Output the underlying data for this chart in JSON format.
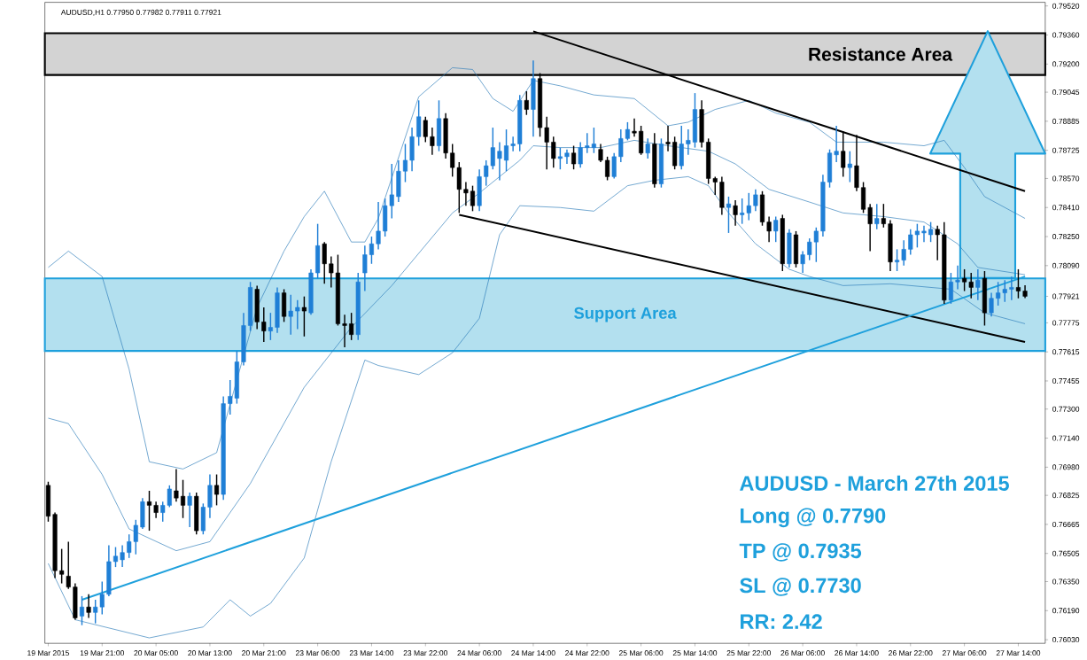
{
  "chart_data": {
    "type": "candlestick",
    "title": "AUDUSD,H1 0.77950 0.77982 0.77911 0.77921",
    "categories": [
      "19 Mar 2015",
      null,
      null,
      null,
      null,
      null,
      null,
      null,
      "19 Mar 21:00",
      null,
      null,
      null,
      null,
      null,
      null,
      null,
      "20 Mar 05:00",
      null,
      null,
      null,
      null,
      null,
      null,
      null,
      "20 Mar 13:00",
      null,
      null,
      null,
      null,
      null,
      null,
      null,
      "20 Mar 21:00",
      null,
      null,
      null,
      null,
      null,
      null,
      null,
      "23 Mar 06:00",
      null,
      null,
      null,
      null,
      null,
      null,
      null,
      "23 Mar 14:00",
      null,
      null,
      null,
      null,
      null,
      null,
      null,
      "23 Mar 22:00",
      null,
      null,
      null,
      null,
      null,
      null,
      null,
      "24 Mar 06:00",
      null,
      null,
      null,
      null,
      null,
      null,
      null,
      "24 Mar 14:00",
      null,
      null,
      null,
      null,
      null,
      null,
      null,
      "24 Mar 22:00",
      null,
      null,
      null,
      null,
      null,
      null,
      null,
      "25 Mar 06:00",
      null,
      null,
      null,
      null,
      null,
      null,
      null,
      "25 Mar 14:00",
      null,
      null,
      null,
      null,
      null,
      null,
      null,
      "25 Mar 22:00",
      null,
      null,
      null,
      null,
      null,
      null,
      null,
      "26 Mar 06:00",
      null,
      null,
      null,
      null,
      null,
      null,
      null,
      "26 Mar 14:00",
      null,
      null,
      null,
      null,
      null,
      null,
      null,
      "26 Mar 22:00",
      null,
      null,
      null,
      null,
      null,
      null,
      null,
      "27 Mar 06:00",
      null,
      null,
      null,
      null,
      null,
      null,
      null,
      "27 Mar 14:00",
      null
    ],
    "ohlc": [
      [
        0.7688,
        0.769,
        0.7668,
        0.7671
      ],
      [
        0.7672,
        0.7673,
        0.7637,
        0.7641
      ],
      [
        0.7641,
        0.7653,
        0.7634,
        0.7639
      ],
      [
        0.7638,
        0.7657,
        0.7631,
        0.7632
      ],
      [
        0.7632,
        0.7634,
        0.7614,
        0.7615
      ],
      [
        0.7616,
        0.7627,
        0.7611,
        0.7621
      ],
      [
        0.7621,
        0.7628,
        0.7615,
        0.7618
      ],
      [
        0.7618,
        0.7625,
        0.7612,
        0.7621
      ],
      [
        0.7621,
        0.7635,
        0.7617,
        0.7628
      ],
      [
        0.7628,
        0.7655,
        0.7627,
        0.7646
      ],
      [
        0.7646,
        0.7654,
        0.7643,
        0.7649
      ],
      [
        0.7647,
        0.7655,
        0.7643,
        0.7651
      ],
      [
        0.7651,
        0.7661,
        0.7648,
        0.7657
      ],
      [
        0.7657,
        0.7669,
        0.765,
        0.7666
      ],
      [
        0.7665,
        0.7681,
        0.7664,
        0.7679
      ],
      [
        0.7679,
        0.7685,
        0.7663,
        0.7677
      ],
      [
        0.7677,
        0.7679,
        0.767,
        0.7673
      ],
      [
        0.7673,
        0.7679,
        0.7668,
        0.7677
      ],
      [
        0.7677,
        0.7688,
        0.7676,
        0.7686
      ],
      [
        0.7685,
        0.7697,
        0.7679,
        0.7681
      ],
      [
        0.7682,
        0.7691,
        0.767,
        0.7677
      ],
      [
        0.7677,
        0.7684,
        0.7665,
        0.7682
      ],
      [
        0.7682,
        0.7684,
        0.7661,
        0.7663
      ],
      [
        0.7663,
        0.7678,
        0.7661,
        0.7676
      ],
      [
        0.7676,
        0.7694,
        0.767,
        0.7688
      ],
      [
        0.7688,
        0.7694,
        0.7677,
        0.7683
      ],
      [
        0.7683,
        0.7737,
        0.768,
        0.7733
      ],
      [
        0.7733,
        0.7746,
        0.7727,
        0.7737
      ],
      [
        0.7736,
        0.7762,
        0.7733,
        0.7756
      ],
      [
        0.7756,
        0.7783,
        0.7754,
        0.7776
      ],
      [
        0.7776,
        0.78,
        0.7773,
        0.7797
      ],
      [
        0.7796,
        0.7798,
        0.7774,
        0.7778
      ],
      [
        0.7778,
        0.7786,
        0.7767,
        0.7773
      ],
      [
        0.7773,
        0.7783,
        0.7768,
        0.7775
      ],
      [
        0.7775,
        0.7797,
        0.7772,
        0.7794
      ],
      [
        0.7794,
        0.7796,
        0.7778,
        0.7781
      ],
      [
        0.7781,
        0.7793,
        0.7771,
        0.7784
      ],
      [
        0.7784,
        0.779,
        0.7774,
        0.7786
      ],
      [
        0.7786,
        0.7792,
        0.777,
        0.7784
      ],
      [
        0.7783,
        0.7807,
        0.7782,
        0.7805
      ],
      [
        0.7805,
        0.7832,
        0.7802,
        0.782
      ],
      [
        0.7821,
        0.7822,
        0.7799,
        0.781
      ],
      [
        0.781,
        0.7814,
        0.7797,
        0.7805
      ],
      [
        0.7805,
        0.7815,
        0.7776,
        0.7777
      ],
      [
        0.7777,
        0.7782,
        0.7764,
        0.7776
      ],
      [
        0.7777,
        0.7783,
        0.7768,
        0.7771
      ],
      [
        0.7771,
        0.7805,
        0.7768,
        0.78
      ],
      [
        0.7805,
        0.782,
        0.7795,
        0.7815
      ],
      [
        0.7815,
        0.7825,
        0.781,
        0.7821
      ],
      [
        0.7821,
        0.7844,
        0.7818,
        0.7828
      ],
      [
        0.7828,
        0.7846,
        0.7825,
        0.7842
      ],
      [
        0.7842,
        0.7865,
        0.7835,
        0.7848
      ],
      [
        0.7847,
        0.7867,
        0.7844,
        0.7861
      ],
      [
        0.7861,
        0.7876,
        0.7855,
        0.7867
      ],
      [
        0.7867,
        0.7885,
        0.7861,
        0.788
      ],
      [
        0.788,
        0.79,
        0.7875,
        0.7891
      ],
      [
        0.7889,
        0.7891,
        0.7877,
        0.788
      ],
      [
        0.788,
        0.7885,
        0.787,
        0.7875
      ],
      [
        0.7875,
        0.79,
        0.7872,
        0.789
      ],
      [
        0.789,
        0.7893,
        0.7868,
        0.7871
      ],
      [
        0.7871,
        0.7876,
        0.7858,
        0.7863
      ],
      [
        0.7863,
        0.7866,
        0.7838,
        0.7851
      ],
      [
        0.7851,
        0.7855,
        0.7842,
        0.7849
      ],
      [
        0.785,
        0.7853,
        0.7839,
        0.7842
      ],
      [
        0.7842,
        0.7862,
        0.7839,
        0.7858
      ],
      [
        0.7858,
        0.7867,
        0.7853,
        0.7864
      ],
      [
        0.7864,
        0.7885,
        0.7862,
        0.7874
      ],
      [
        0.7868,
        0.7877,
        0.7856,
        0.7872
      ],
      [
        0.7867,
        0.7884,
        0.7861,
        0.7875
      ],
      [
        0.7875,
        0.788,
        0.7872,
        0.7876
      ],
      [
        0.7876,
        0.7903,
        0.7872,
        0.79
      ],
      [
        0.79,
        0.7905,
        0.7892,
        0.7895
      ],
      [
        0.7895,
        0.7922,
        0.788,
        0.7912
      ],
      [
        0.7912,
        0.7915,
        0.788,
        0.7885
      ],
      [
        0.7885,
        0.7891,
        0.7862,
        0.7877
      ],
      [
        0.7877,
        0.788,
        0.7863,
        0.7868
      ],
      [
        0.7868,
        0.7874,
        0.7862,
        0.7869
      ],
      [
        0.7869,
        0.7873,
        0.7865,
        0.7871
      ],
      [
        0.7871,
        0.7875,
        0.7862,
        0.7865
      ],
      [
        0.7865,
        0.7877,
        0.7863,
        0.7874
      ],
      [
        0.7874,
        0.7882,
        0.7871,
        0.7875
      ],
      [
        0.7874,
        0.7885,
        0.7871,
        0.7876
      ],
      [
        0.7873,
        0.7876,
        0.7866,
        0.7867
      ],
      [
        0.7867,
        0.7869,
        0.7856,
        0.7858
      ],
      [
        0.7858,
        0.7871,
        0.7857,
        0.7869
      ],
      [
        0.7869,
        0.7884,
        0.7866,
        0.7879
      ],
      [
        0.7879,
        0.7888,
        0.7878,
        0.7884
      ],
      [
        0.7883,
        0.789,
        0.788,
        0.7882
      ],
      [
        0.7883,
        0.7886,
        0.787,
        0.7871
      ],
      [
        0.7871,
        0.7879,
        0.7868,
        0.7876
      ],
      [
        0.7876,
        0.7882,
        0.7852,
        0.7854
      ],
      [
        0.7854,
        0.7879,
        0.7852,
        0.7876
      ],
      [
        0.7877,
        0.7886,
        0.7872,
        0.7876
      ],
      [
        0.7877,
        0.788,
        0.7862,
        0.7864
      ],
      [
        0.7864,
        0.7886,
        0.7862,
        0.7876
      ],
      [
        0.7876,
        0.7884,
        0.787,
        0.7878
      ],
      [
        0.7877,
        0.7904,
        0.7874,
        0.7895
      ],
      [
        0.7895,
        0.79,
        0.7874,
        0.7877
      ],
      [
        0.7877,
        0.7879,
        0.7854,
        0.7857
      ],
      [
        0.7857,
        0.7858,
        0.7848,
        0.7855
      ],
      [
        0.7855,
        0.7858,
        0.7837,
        0.7841
      ],
      [
        0.7841,
        0.7847,
        0.7827,
        0.7843
      ],
      [
        0.7842,
        0.7845,
        0.7831,
        0.7837
      ],
      [
        0.7837,
        0.7846,
        0.7832,
        0.7838
      ],
      [
        0.7838,
        0.7849,
        0.7834,
        0.7842
      ],
      [
        0.7842,
        0.7851,
        0.7839,
        0.7848
      ],
      [
        0.7848,
        0.785,
        0.7831,
        0.7833
      ],
      [
        0.7833,
        0.7836,
        0.7822,
        0.7828
      ],
      [
        0.7828,
        0.7836,
        0.7822,
        0.7834
      ],
      [
        0.7835,
        0.7837,
        0.7806,
        0.781
      ],
      [
        0.781,
        0.7829,
        0.7808,
        0.7827
      ],
      [
        0.7826,
        0.7828,
        0.7808,
        0.781
      ],
      [
        0.781,
        0.7817,
        0.7805,
        0.7815
      ],
      [
        0.7815,
        0.7824,
        0.7812,
        0.7822
      ],
      [
        0.7822,
        0.783,
        0.7811,
        0.7828
      ],
      [
        0.7828,
        0.7859,
        0.7825,
        0.7855
      ],
      [
        0.7855,
        0.7873,
        0.7852,
        0.7871
      ],
      [
        0.787,
        0.7886,
        0.7866,
        0.7872
      ],
      [
        0.7872,
        0.7883,
        0.7858,
        0.7863
      ],
      [
        0.7863,
        0.7872,
        0.7855,
        0.7865
      ],
      [
        0.7864,
        0.7881,
        0.785,
        0.7852
      ],
      [
        0.7852,
        0.7855,
        0.7838,
        0.784
      ],
      [
        0.7841,
        0.7843,
        0.7817,
        0.7832
      ],
      [
        0.7832,
        0.7843,
        0.7829,
        0.7835
      ],
      [
        0.7835,
        0.7843,
        0.783,
        0.7832
      ],
      [
        0.7832,
        0.7834,
        0.7806,
        0.7811
      ],
      [
        0.7811,
        0.7818,
        0.7806,
        0.7812
      ],
      [
        0.7812,
        0.7823,
        0.7809,
        0.7818
      ],
      [
        0.7818,
        0.7829,
        0.7815,
        0.7826
      ],
      [
        0.7826,
        0.7832,
        0.7819,
        0.7828
      ],
      [
        0.7827,
        0.7831,
        0.7822,
        0.7828
      ],
      [
        0.7826,
        0.7833,
        0.7822,
        0.7829
      ],
      [
        0.7829,
        0.7831,
        0.7812,
        0.7826
      ],
      [
        0.7826,
        0.7833,
        0.7788,
        0.779
      ],
      [
        0.779,
        0.7805,
        0.7788,
        0.78
      ],
      [
        0.78,
        0.7809,
        0.7796,
        0.7801
      ],
      [
        0.7802,
        0.7807,
        0.7795,
        0.78
      ],
      [
        0.78,
        0.7805,
        0.7791,
        0.7797
      ],
      [
        0.7797,
        0.7807,
        0.779,
        0.7801
      ],
      [
        0.7802,
        0.7806,
        0.7776,
        0.7783
      ],
      [
        0.7783,
        0.7794,
        0.7781,
        0.7791
      ],
      [
        0.7791,
        0.78,
        0.7787,
        0.7794
      ],
      [
        0.7794,
        0.7801,
        0.7789,
        0.7796
      ],
      [
        0.7796,
        0.7803,
        0.779,
        0.7797
      ],
      [
        0.7797,
        0.7807,
        0.7791,
        0.7795
      ],
      [
        0.7795,
        0.77982,
        0.77911,
        0.77921
      ]
    ],
    "series": [
      {
        "type": "line",
        "color": "#2b7bb9",
        "values": [
          0.7808,
          null,
          null,
          0.7817,
          null,
          null,
          null,
          null,
          0.7803,
          null,
          null,
          null,
          0.7752,
          null,
          null,
          0.7701,
          null,
          null,
          null,
          null,
          0.7697,
          null,
          null,
          null,
          null,
          0.7706,
          null,
          null,
          null,
          null,
          null,
          0.7786,
          null,
          null,
          null,
          0.7817,
          null,
          null,
          0.7836,
          null,
          null,
          0.785,
          null,
          null,
          null,
          0.7822,
          null,
          0.7822,
          null,
          0.7835,
          null,
          null,
          null,
          null,
          null,
          0.7902,
          null,
          null,
          null,
          null,
          0.7918,
          null,
          null,
          0.7917,
          null,
          null,
          0.7901,
          null,
          null,
          0.7894,
          null,
          null,
          0.7911,
          null,
          null,
          null,
          0.7908,
          null,
          null,
          null,
          null,
          0.7903,
          null,
          null,
          null,
          null,
          null,
          0.7901,
          null,
          null,
          null,
          null,
          0.7886,
          null,
          null,
          0.7888,
          null,
          null,
          null,
          0.7895,
          null,
          null,
          null,
          null,
          0.79,
          null,
          null,
          null,
          0.7893,
          null,
          null,
          null,
          null,
          0.7888,
          null,
          null,
          null,
          0.7877,
          null,
          null,
          null,
          null,
          null,
          null,
          0.7877,
          null,
          null,
          null,
          null,
          null,
          0.7875,
          null,
          null,
          0.7878,
          null,
          null,
          0.7863,
          null,
          null,
          0.7847,
          null,
          null,
          null,
          null,
          null,
          0.7835
        ]
      },
      {
        "type": "line",
        "color": "#2b7bb9",
        "values": [
          0.7725,
          null,
          null,
          0.7722,
          null,
          null,
          null,
          null,
          0.7694,
          null,
          null,
          null,
          0.7664,
          null,
          null,
          null,
          null,
          null,
          null,
          0.7652,
          null,
          null,
          null,
          null,
          0.7657,
          null,
          null,
          null,
          null,
          null,
          0.7689,
          null,
          null,
          null,
          null,
          null,
          null,
          null,
          0.7742,
          null,
          null,
          null,
          null,
          null,
          null,
          0.7775,
          null,
          null,
          null,
          null,
          null,
          0.7798,
          null,
          null,
          null,
          null,
          null,
          null,
          null,
          null,
          0.7838,
          null,
          null,
          null,
          0.7849,
          null,
          null,
          null,
          null,
          null,
          0.7867,
          null,
          0.7875,
          null,
          null,
          null,
          0.7874,
          null,
          null,
          null,
          null,
          null,
          0.7874,
          null,
          null,
          null,
          null,
          0.7878,
          null,
          null,
          null,
          null,
          0.7875,
          null,
          null,
          null,
          null,
          null,
          0.7872,
          null,
          null,
          null,
          0.7865,
          null,
          null,
          null,
          null,
          0.7851,
          null,
          null,
          null,
          null,
          null,
          0.7844,
          null,
          null,
          null,
          null,
          0.7838,
          null,
          null,
          null,
          null,
          null,
          0.7836,
          null,
          null,
          null,
          null,
          null,
          0.7833,
          null,
          null,
          null,
          null,
          0.7821,
          null,
          null,
          0.7808,
          null,
          null,
          null,
          null,
          null,
          null,
          0.7804
        ]
      },
      {
        "type": "line",
        "color": "#2b7bb9",
        "values": [
          0.7645,
          null,
          null,
          null,
          0.7614,
          null,
          null,
          null,
          null,
          null,
          null,
          null,
          null,
          null,
          null,
          0.7604,
          null,
          null,
          null,
          0.7607,
          null,
          null,
          null,
          0.761,
          null,
          null,
          null,
          0.7625,
          null,
          null,
          0.7616,
          null,
          null,
          0.7623,
          null,
          null,
          null,
          null,
          0.7648,
          null,
          null,
          null,
          0.7701,
          null,
          null,
          null,
          null,
          0.7757,
          null,
          0.7754,
          null,
          null,
          null,
          null,
          null,
          0.7749,
          null,
          null,
          null,
          null,
          0.7761,
          null,
          null,
          null,
          0.778,
          null,
          null,
          0.7826,
          null,
          null,
          0.7842,
          null,
          null,
          null,
          null,
          null,
          0.7841,
          null,
          null,
          null,
          null,
          0.7839,
          null,
          null,
          null,
          null,
          0.7853,
          null,
          null,
          null,
          0.7856,
          null,
          null,
          null,
          null,
          0.7858,
          null,
          null,
          0.7853,
          null,
          null,
          0.7838,
          null,
          null,
          null,
          0.7821,
          null,
          null,
          null,
          null,
          0.7807,
          null,
          null,
          0.7803,
          null,
          null,
          null,
          null,
          0.7798,
          null,
          null,
          null,
          null,
          null,
          null,
          0.7799,
          null,
          null,
          null,
          null,
          null,
          null,
          null,
          null,
          0.7796,
          null,
          null,
          null,
          null,
          0.7783,
          null,
          null,
          null,
          null,
          null,
          0.7777
        ]
      },
      {
        "type": "line",
        "color": "#000000",
        "values": [
          null,
          null,
          null,
          null,
          null,
          null,
          null,
          null,
          null,
          null,
          null,
          null,
          null,
          null,
          null,
          null,
          null,
          null,
          null,
          null,
          null,
          null,
          null,
          null,
          null,
          null,
          null,
          null,
          null,
          null,
          null,
          null,
          null,
          null,
          null,
          null,
          null,
          null,
          null,
          null,
          null,
          null,
          null,
          null,
          null,
          null,
          null,
          null,
          null,
          null,
          null,
          null,
          null,
          null,
          null,
          null,
          null,
          null,
          null,
          null,
          null,
          null,
          null,
          null,
          null,
          null,
          null,
          null,
          null,
          null,
          null,
          null,
          0.7938,
          null,
          null,
          null,
          null,
          null,
          null,
          null,
          null,
          null,
          null,
          null,
          null,
          null,
          null,
          null,
          null,
          null,
          null,
          null,
          null,
          null,
          null,
          null,
          null,
          null,
          null,
          null,
          null,
          null,
          null,
          null,
          null,
          null,
          null,
          null,
          null,
          null,
          null,
          null,
          null,
          null,
          null,
          null,
          null,
          null,
          null,
          null,
          null,
          null,
          null,
          null,
          null,
          null,
          null,
          null,
          null,
          null,
          null,
          null,
          null,
          null,
          null,
          null,
          null,
          null,
          null,
          null,
          null,
          null,
          null,
          null,
          null,
          0.785
        ]
      },
      {
        "type": "line",
        "color": "#000000",
        "values": [
          null,
          null,
          null,
          null,
          null,
          null,
          null,
          null,
          null,
          null,
          null,
          null,
          null,
          null,
          null,
          null,
          null,
          null,
          null,
          null,
          null,
          null,
          null,
          null,
          null,
          null,
          null,
          null,
          null,
          null,
          null,
          null,
          null,
          null,
          null,
          null,
          null,
          null,
          null,
          null,
          null,
          null,
          null,
          null,
          null,
          null,
          null,
          null,
          null,
          null,
          null,
          null,
          null,
          null,
          null,
          null,
          null,
          null,
          null,
          null,
          null,
          0.7837,
          null,
          null,
          null,
          null,
          null,
          null,
          null,
          null,
          null,
          null,
          null,
          null,
          null,
          null,
          null,
          null,
          null,
          null,
          null,
          null,
          null,
          null,
          null,
          null,
          null,
          null,
          null,
          null,
          null,
          null,
          null,
          null,
          null,
          null,
          null,
          null,
          null,
          null,
          null,
          null,
          null,
          null,
          null,
          null,
          null,
          null,
          null,
          null,
          null,
          null,
          null,
          null,
          null,
          null,
          null,
          null,
          null,
          null,
          null,
          null,
          null,
          null,
          null,
          null,
          null,
          null,
          null,
          null,
          null,
          null,
          null,
          null,
          null,
          null,
          null,
          null,
          null,
          null,
          null,
          null,
          null,
          null,
          null,
          0.7767
        ]
      },
      {
        "type": "line",
        "color": "#1ea0dc",
        "values": [
          null,
          null,
          null,
          null,
          null,
          0.7625,
          null,
          null,
          null,
          null,
          null,
          null,
          null,
          null,
          null,
          null,
          null,
          null,
          null,
          null,
          null,
          null,
          null,
          null,
          null,
          null,
          null,
          null,
          null,
          null,
          null,
          null,
          null,
          null,
          null,
          null,
          null,
          null,
          null,
          null,
          null,
          null,
          null,
          null,
          null,
          null,
          null,
          null,
          null,
          null,
          null,
          null,
          null,
          null,
          null,
          null,
          null,
          null,
          null,
          null,
          null,
          null,
          null,
          null,
          null,
          null,
          null,
          null,
          null,
          null,
          null,
          null,
          null,
          null,
          null,
          null,
          null,
          null,
          null,
          null,
          null,
          null,
          null,
          null,
          null,
          null,
          null,
          null,
          null,
          null,
          null,
          null,
          null,
          null,
          null,
          null,
          null,
          null,
          null,
          null,
          null,
          null,
          null,
          null,
          null,
          null,
          null,
          null,
          null,
          null,
          null,
          null,
          null,
          null,
          null,
          null,
          null,
          null,
          null,
          null,
          null,
          null,
          null,
          null,
          null,
          null,
          null,
          null,
          null,
          null,
          null,
          null,
          null,
          null,
          null,
          null,
          null,
          null,
          null,
          null,
          null,
          null,
          null,
          null,
          null,
          0.7803
        ]
      }
    ],
    "bands": [
      {
        "axis": "y",
        "from": 0.7762,
        "to": 0.7802,
        "label": "Support Area",
        "color": "#b3e0ef"
      },
      {
        "axis": "y",
        "from": 0.7914,
        "to": 0.7937,
        "label": "Resistance Area",
        "color": "#d3d3d3"
      }
    ],
    "annotations": [
      "AUDUSD - March 27th 2015",
      "Long @ 0.7790",
      "TP @ 0.7935",
      "SL @ 0.7730",
      "RR: 2.42"
    ],
    "ylim": [
      0.7601,
      0.7954
    ],
    "yticks": [
      {
        "value": 0.7952,
        "label": "0.79520"
      },
      {
        "value": 0.7936,
        "label": "0.79360"
      },
      {
        "value": 0.792,
        "label": "0.79200"
      },
      0.79045,
      0.78885,
      0.78725,
      {
        "value": 0.7857,
        "label": "0.78570"
      },
      {
        "value": 0.7841,
        "label": "0.78410"
      },
      {
        "value": 0.7825,
        "label": "0.78250"
      },
      {
        "value": 0.7809,
        "label": "0.78090"
      },
      0.77921,
      0.77775,
      0.77615,
      0.77455,
      {
        "value": 0.773,
        "label": "0.77300"
      },
      {
        "value": 0.7714,
        "label": "0.77140"
      },
      {
        "value": 0.7698,
        "label": "0.76980"
      },
      0.76825,
      0.76665,
      0.76505,
      {
        "value": 0.7635,
        "label": "0.76350"
      },
      {
        "value": 0.7619,
        "label": "0.76190"
      },
      {
        "value": 0.7603,
        "label": "0.76030"
      }
    ]
  }
}
